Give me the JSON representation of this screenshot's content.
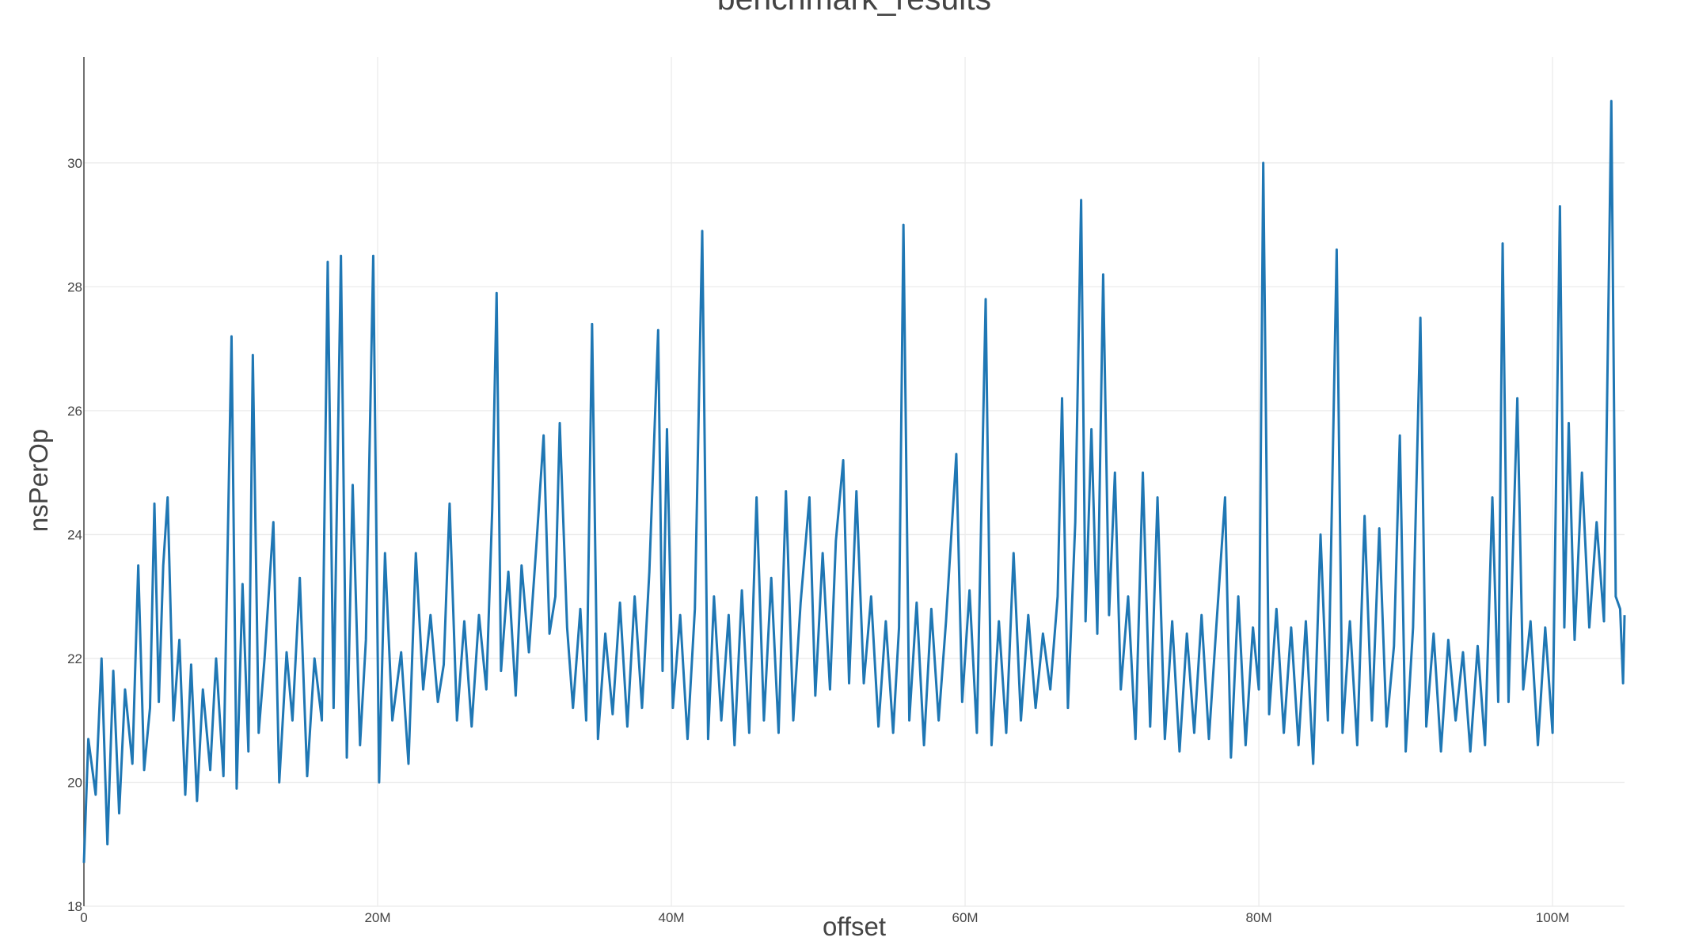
{
  "chart_data": {
    "type": "line",
    "title": "benchmark_results",
    "x_label": "offset",
    "y_label": "nsPerOp",
    "x": [
      0,
      300000,
      800000,
      1200000,
      1600000,
      2000000,
      2400000,
      2800000,
      3300000,
      3700000,
      4100000,
      4500000,
      4800000,
      5100000,
      5400000,
      5700000,
      6100000,
      6500000,
      6900000,
      7300000,
      7700000,
      8100000,
      8600000,
      9000000,
      9500000,
      10050000,
      10400000,
      10800000,
      11200000,
      11500000,
      11900000,
      12300000,
      12900000,
      13300000,
      13800000,
      14200000,
      14700000,
      15200000,
      15700000,
      16200000,
      16600000,
      17000000,
      17500000,
      17900000,
      18300000,
      18800000,
      19200000,
      19700000,
      20100000,
      20500000,
      21000000,
      21600000,
      22100000,
      22600000,
      23100000,
      23600000,
      24100000,
      24500000,
      24900000,
      25400000,
      25900000,
      26400000,
      26900000,
      27400000,
      27800000,
      28100000,
      28400000,
      28900000,
      29400000,
      29800000,
      30300000,
      30800000,
      31300000,
      31700000,
      32100000,
      32400000,
      32900000,
      33300000,
      33800000,
      34200000,
      34600000,
      35000000,
      35500000,
      36000000,
      36500000,
      37000000,
      37500000,
      38000000,
      38500000,
      39100000,
      39400000,
      39700000,
      40100000,
      40600000,
      41100000,
      41600000,
      42100000,
      42500000,
      42900000,
      43400000,
      43900000,
      44300000,
      44800000,
      45300000,
      45800000,
      46300000,
      46800000,
      47300000,
      47800000,
      48300000,
      48800000,
      49400000,
      49800000,
      50300000,
      50800000,
      51200000,
      51700000,
      52100000,
      52600000,
      53100000,
      53600000,
      54100000,
      54600000,
      55100000,
      55500000,
      55800000,
      56200000,
      56700000,
      57200000,
      57700000,
      58200000,
      58700000,
      59400000,
      59800000,
      60300000,
      60800000,
      61400000,
      61800000,
      62300000,
      62800000,
      63300000,
      63800000,
      64300000,
      64800000,
      65300000,
      65800000,
      66300000,
      66600000,
      67000000,
      67500000,
      67900000,
      68200000,
      68600000,
      69000000,
      69400000,
      69800000,
      70200000,
      70600000,
      71100000,
      71600000,
      72100000,
      72600000,
      73100000,
      73600000,
      74100000,
      74600000,
      75100000,
      75600000,
      76100000,
      76600000,
      77100000,
      77700000,
      78100000,
      78600000,
      79100000,
      79600000,
      80000000,
      80300000,
      80700000,
      81200000,
      81700000,
      82200000,
      82700000,
      83200000,
      83700000,
      84200000,
      84700000,
      85300000,
      85700000,
      86200000,
      86700000,
      87200000,
      87700000,
      88200000,
      88700000,
      89200000,
      89600000,
      90000000,
      90500000,
      91000000,
      91400000,
      91900000,
      92400000,
      92900000,
      93400000,
      93900000,
      94400000,
      94900000,
      95400000,
      95900000,
      96300000,
      96600000,
      97000000,
      97600000,
      98000000,
      98500000,
      99000000,
      99500000,
      100000000,
      100500000,
      100800000,
      101100000,
      101500000,
      102000000,
      102500000,
      103000000,
      103500000,
      104000000,
      104300000,
      104600000,
      104800000,
      104900000
    ],
    "series": [
      {
        "name": "nsPerOp",
        "color": "#1f77b4",
        "values": [
          18.7,
          20.7,
          19.8,
          22.0,
          19.0,
          21.8,
          19.5,
          21.5,
          20.3,
          23.5,
          20.2,
          21.2,
          24.5,
          21.3,
          23.5,
          24.6,
          21.0,
          22.3,
          19.8,
          21.9,
          19.7,
          21.5,
          20.2,
          22.0,
          20.1,
          27.2,
          19.9,
          23.2,
          20.5,
          26.9,
          20.8,
          22.0,
          24.2,
          20.0,
          22.1,
          21.0,
          23.3,
          20.1,
          22.0,
          21.0,
          28.4,
          21.2,
          28.5,
          20.4,
          24.8,
          20.6,
          22.3,
          28.5,
          20.0,
          23.7,
          21.0,
          22.1,
          20.3,
          23.7,
          21.5,
          22.7,
          21.3,
          21.9,
          24.5,
          21.0,
          22.6,
          20.9,
          22.7,
          21.5,
          24.4,
          27.9,
          21.8,
          23.4,
          21.4,
          23.5,
          22.1,
          23.8,
          25.6,
          22.4,
          23.0,
          25.8,
          22.5,
          21.2,
          22.8,
          21.0,
          27.4,
          20.7,
          22.4,
          21.1,
          22.9,
          20.9,
          23.0,
          21.2,
          23.4,
          27.3,
          21.8,
          25.7,
          21.2,
          22.7,
          20.7,
          22.8,
          28.9,
          20.7,
          23.0,
          21.0,
          22.7,
          20.6,
          23.1,
          20.8,
          24.6,
          21.0,
          23.3,
          20.8,
          24.7,
          21.0,
          22.9,
          24.6,
          21.4,
          23.7,
          21.5,
          23.9,
          25.2,
          21.6,
          24.7,
          21.6,
          23.0,
          20.9,
          22.6,
          20.8,
          22.5,
          29.0,
          21.0,
          22.9,
          20.6,
          22.8,
          21.0,
          22.6,
          25.3,
          21.3,
          23.1,
          20.8,
          27.8,
          20.6,
          22.6,
          20.8,
          23.7,
          21.0,
          22.7,
          21.2,
          22.4,
          21.5,
          23.0,
          26.2,
          21.2,
          24.2,
          29.4,
          22.6,
          25.7,
          22.4,
          28.2,
          22.7,
          25.0,
          21.5,
          23.0,
          20.7,
          25.0,
          20.9,
          24.6,
          20.7,
          22.6,
          20.5,
          22.4,
          20.8,
          22.7,
          20.7,
          22.5,
          24.6,
          20.4,
          23.0,
          20.6,
          22.5,
          21.5,
          30.0,
          21.1,
          22.8,
          20.8,
          22.5,
          20.6,
          22.6,
          20.3,
          24.0,
          21.0,
          28.6,
          20.8,
          22.6,
          20.6,
          24.3,
          21.0,
          24.1,
          20.9,
          22.2,
          25.6,
          20.5,
          22.5,
          27.5,
          20.9,
          22.4,
          20.5,
          22.3,
          21.0,
          22.1,
          20.5,
          22.2,
          20.6,
          24.6,
          21.3,
          28.7,
          21.3,
          26.2,
          21.5,
          22.6,
          20.6,
          22.5,
          20.8,
          29.3,
          22.5,
          25.8,
          22.3,
          25.0,
          22.5,
          24.2,
          22.6,
          31.0,
          23.0,
          22.8,
          21.6,
          22.7
        ]
      }
    ],
    "xlim": [
      0,
      104900000
    ],
    "ylim": [
      18,
      31.71
    ],
    "xticks": [
      0,
      {
        "value": 20000000,
        "label": "20M"
      },
      {
        "value": 40000000,
        "label": "40M"
      },
      {
        "value": 60000000,
        "label": "60M"
      },
      {
        "value": 80000000,
        "label": "80M"
      },
      {
        "value": 100000000,
        "label": "100M"
      }
    ],
    "yticks": [
      18,
      20,
      22,
      24,
      26,
      28,
      30
    ],
    "grid": true
  }
}
